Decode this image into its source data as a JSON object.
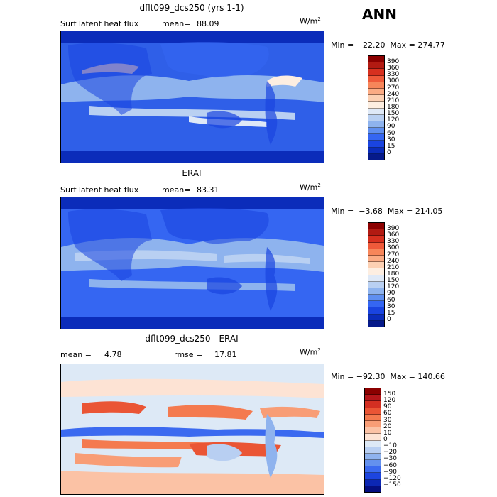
{
  "season": "ANN",
  "panels": [
    {
      "id": "model",
      "title": "dflt099_dcs250 (yrs 1-1)",
      "left_label": "Surf latent heat flux",
      "mean_label": "mean=",
      "mean_value": "88.09",
      "units": "W/m",
      "units_sup": "2",
      "minmax": "Min = −22.20  Max = 274.77",
      "colorbar_levels": [
        "390",
        "360",
        "330",
        "300",
        "270",
        "240",
        "210",
        "180",
        "150",
        "120",
        "90",
        "60",
        "30",
        "15",
        "0"
      ],
      "colorbar_colors": [
        "#8b0000",
        "#b21a12",
        "#d7301f",
        "#ef5a3a",
        "#f7865a",
        "#fbab84",
        "#fcd0b3",
        "#fdeee1",
        "#dfe9f7",
        "#b9d0f2",
        "#8eb3ee",
        "#5f8ff0",
        "#3566f2",
        "#1a44e0",
        "#0b2cba",
        "#061a8a"
      ]
    },
    {
      "id": "obs",
      "title": "ERAI",
      "left_label": "Surf latent heat flux",
      "mean_label": "mean=",
      "mean_value": "83.31",
      "units": "W/m",
      "units_sup": "2",
      "minmax": "Min =  −3.68  Max = 214.05",
      "colorbar_levels": [
        "390",
        "360",
        "330",
        "300",
        "270",
        "240",
        "210",
        "180",
        "150",
        "120",
        "90",
        "60",
        "30",
        "15",
        "0"
      ],
      "colorbar_colors": [
        "#8b0000",
        "#b21a12",
        "#d7301f",
        "#ef5a3a",
        "#f7865a",
        "#fbab84",
        "#fcd0b3",
        "#fdeee1",
        "#dfe9f7",
        "#b9d0f2",
        "#8eb3ee",
        "#5f8ff0",
        "#3566f2",
        "#1a44e0",
        "#0b2cba",
        "#061a8a"
      ]
    },
    {
      "id": "diff",
      "title": "dflt099_dcs250 - ERAI",
      "left_label": "mean =",
      "mean_label": "",
      "mean_value": "4.78",
      "rmse_label": "rmse =",
      "rmse_value": "17.81",
      "units": "W/m",
      "units_sup": "2",
      "minmax": "Min = −92.30  Max = 140.66",
      "colorbar_levels": [
        "150",
        "120",
        "90",
        "60",
        "30",
        "20",
        "10",
        "0",
        "−10",
        "−20",
        "−30",
        "−60",
        "−90",
        "−120",
        "−150"
      ],
      "colorbar_colors": [
        "#8b0000",
        "#b5161a",
        "#d32f22",
        "#ea5535",
        "#f47a4f",
        "#f89d76",
        "#fbc2a5",
        "#fde3d4",
        "#dde9f6",
        "#b8cff2",
        "#8fb3ee",
        "#6491ee",
        "#3b6af0",
        "#1d45df",
        "#0c27b4",
        "#050f80"
      ]
    }
  ]
}
